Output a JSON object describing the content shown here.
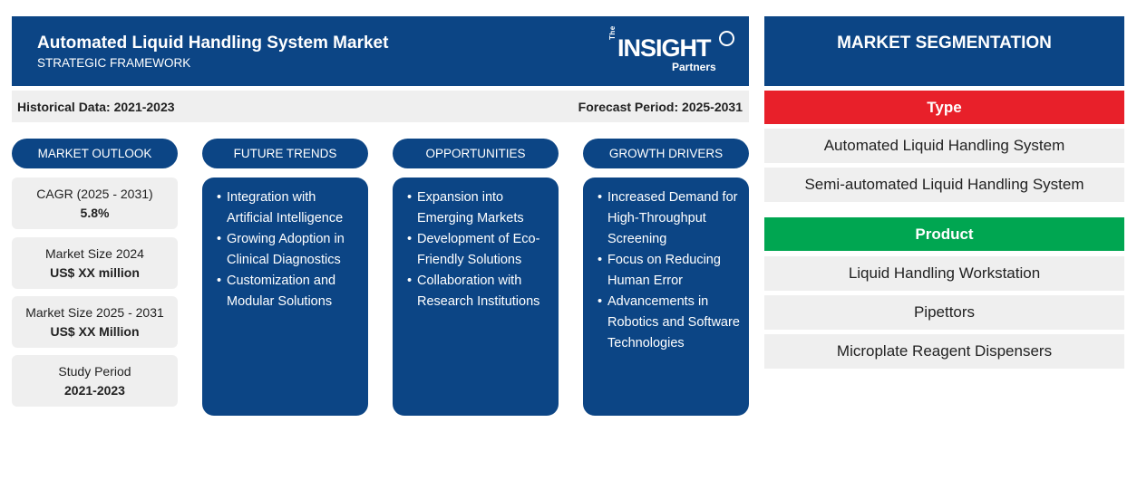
{
  "header": {
    "title": "Automated Liquid Handling System Market",
    "subtitle": "STRATEGIC FRAMEWORK",
    "logo": {
      "the": "The",
      "name": "INSIGHT",
      "partners": "Partners"
    }
  },
  "periods": {
    "historical": "Historical Data: 2021-2023",
    "forecast": "Forecast Period: 2025-2031"
  },
  "columns": {
    "market_outlook": "MARKET OUTLOOK",
    "future_trends": "FUTURE TRENDS",
    "opportunities": "OPPORTUNITIES",
    "growth_drivers": "GROWTH DRIVERS"
  },
  "outlook": [
    {
      "label": "CAGR (2025 - 2031)",
      "value": "5.8%"
    },
    {
      "label": "Market Size 2024",
      "value": "US$ XX million"
    },
    {
      "label": "Market Size 2025 - 2031",
      "value": "US$ XX Million"
    },
    {
      "label": "Study Period",
      "value": "2021-2023"
    }
  ],
  "future_trends": [
    "Integration with Artificial Intelligence",
    "Growing Adoption in Clinical Diagnostics",
    "Customization and Modular Solutions"
  ],
  "opportunities": [
    "Expansion into Emerging Markets",
    "Development of Eco-Friendly Solutions",
    "Collaboration with Research Institutions"
  ],
  "growth_drivers": [
    "Increased Demand for High-Throughput Screening",
    "Focus on Reducing Human Error",
    "Advancements in Robotics and Software Technologies"
  ],
  "segmentation": {
    "title": "MARKET SEGMENTATION",
    "type": {
      "label": "Type",
      "color": "#e8202a",
      "items": [
        "Automated Liquid Handling System",
        "Semi-automated Liquid Handling System"
      ]
    },
    "product": {
      "label": "Product",
      "color": "#00a651",
      "items": [
        "Liquid Handling Workstation",
        "Pipettors",
        "Microplate Reagent Dispensers"
      ]
    }
  },
  "colors": {
    "primary": "#0c4585",
    "panel": "#efefef"
  }
}
